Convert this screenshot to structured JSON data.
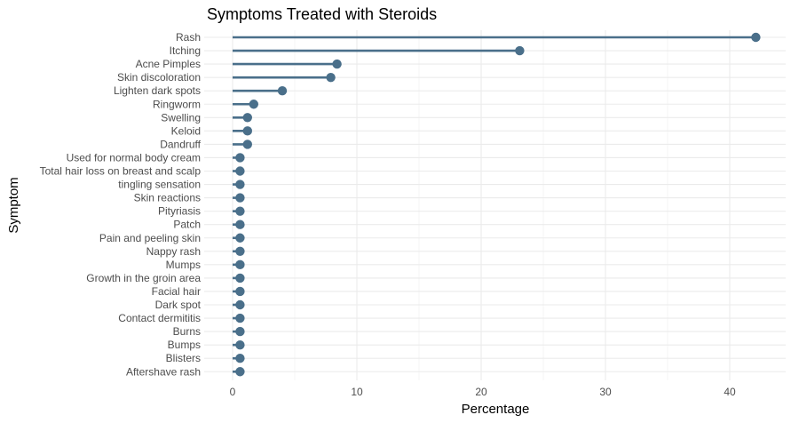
{
  "chart_data": {
    "type": "lollipop",
    "title": "Symptoms Treated with Steroids",
    "xlabel": "Percentage",
    "ylabel": "Symptom",
    "xlim": [
      -1.5,
      44.5
    ],
    "x_ticks": [
      0,
      10,
      20,
      30,
      40
    ],
    "grid": true,
    "legend": "none",
    "colors": {
      "mark": "#4a6f8a"
    },
    "categories": [
      "Rash",
      "Itching",
      "Acne Pimples",
      "Skin discoloration",
      "Lighten dark spots",
      "Ringworm",
      "Swelling",
      "Keloid",
      "Dandruff",
      "Used for normal body cream",
      "Total hair loss on breast and scalp",
      "tingling sensation",
      "Skin reactions",
      "Pityriasis",
      "Patch",
      "Pain and peeling skin",
      "Nappy rash",
      "Mumps",
      "Growth in the groin area",
      "Facial hair",
      "Dark spot",
      "Contact dermititis",
      "Burns",
      "Bumps",
      "Blisters",
      "Aftershave rash"
    ],
    "values": [
      42.1,
      23.1,
      8.4,
      7.9,
      4.0,
      1.7,
      1.2,
      1.2,
      1.2,
      0.6,
      0.6,
      0.6,
      0.6,
      0.6,
      0.6,
      0.6,
      0.6,
      0.6,
      0.6,
      0.6,
      0.6,
      0.6,
      0.6,
      0.6,
      0.6,
      0.6
    ]
  }
}
